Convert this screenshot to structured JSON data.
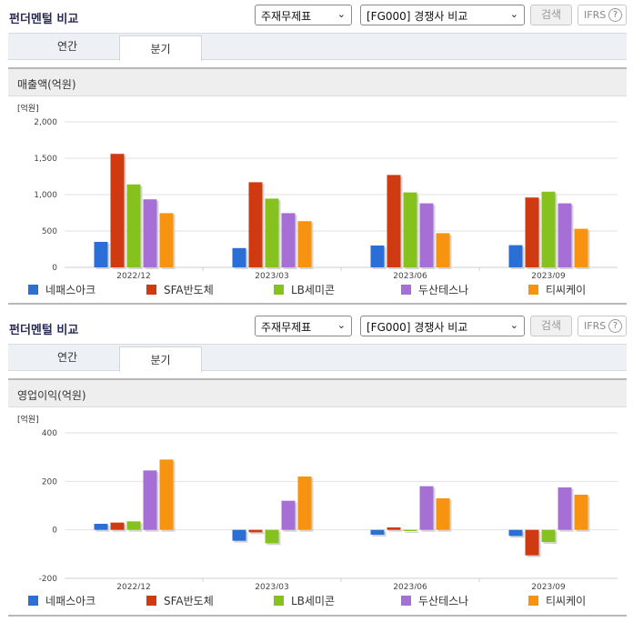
{
  "blocks": [
    {
      "title": "펀더멘털 비교",
      "select1": "주재무제표",
      "select2": "[FG000] 경쟁사 비교",
      "search_label": "검색",
      "ifrs_label": "IFRS",
      "help_glyph": "?",
      "caret": "⌄",
      "tabs": [
        "연간",
        "분기"
      ],
      "active_tab": "분기",
      "chart_title": "매출액(억원)"
    },
    {
      "title": "펀더멘털 비교",
      "select1": "주재무제표",
      "select2": "[FG000] 경쟁사 비교",
      "search_label": "검색",
      "ifrs_label": "IFRS",
      "help_glyph": "?",
      "caret": "⌄",
      "tabs": [
        "연간",
        "분기"
      ],
      "active_tab": "분기",
      "chart_title": "영업이익(억원)"
    }
  ],
  "colors": [
    "#2b6fd6",
    "#cf3a10",
    "#86c21d",
    "#a56fd6",
    "#f7930f"
  ],
  "chart_data": [
    {
      "type": "bar",
      "title": "매출액(억원)",
      "unit": "[억원]",
      "categories": [
        "2022/12",
        "2023/03",
        "2023/06",
        "2023/09"
      ],
      "ylim": [
        0,
        2000
      ],
      "yticks": [
        0,
        500,
        1000,
        1500,
        2000
      ],
      "ytick_labels": [
        "0",
        "500",
        "1,000",
        "1,500",
        "2,000"
      ],
      "grid": true,
      "legend_position": "bottom",
      "series": [
        {
          "name": "네패스아크",
          "values": [
            350,
            265,
            300,
            305
          ]
        },
        {
          "name": "SFA반도체",
          "values": [
            1560,
            1170,
            1270,
            960
          ]
        },
        {
          "name": "LB세미콘",
          "values": [
            1140,
            945,
            1030,
            1040
          ]
        },
        {
          "name": "두산테스나",
          "values": [
            935,
            745,
            880,
            880
          ]
        },
        {
          "name": "티씨케이",
          "values": [
            745,
            635,
            470,
            530
          ]
        }
      ]
    },
    {
      "type": "bar",
      "title": "영업이익(억원)",
      "unit": "[억원]",
      "categories": [
        "2022/12",
        "2023/03",
        "2023/06",
        "2023/09"
      ],
      "ylim": [
        -200,
        400
      ],
      "yticks": [
        -200,
        0,
        200,
        400
      ],
      "ytick_labels": [
        "-200",
        "0",
        "200",
        "400"
      ],
      "grid": true,
      "legend_position": "bottom",
      "series": [
        {
          "name": "네패스아크",
          "values": [
            25,
            -45,
            -20,
            -25
          ]
        },
        {
          "name": "SFA반도체",
          "values": [
            30,
            -10,
            10,
            -105
          ]
        },
        {
          "name": "LB세미콘",
          "values": [
            35,
            -55,
            -5,
            -50
          ]
        },
        {
          "name": "두산테스나",
          "values": [
            245,
            120,
            180,
            175
          ]
        },
        {
          "name": "티씨케이",
          "values": [
            290,
            220,
            130,
            145
          ]
        }
      ]
    }
  ]
}
